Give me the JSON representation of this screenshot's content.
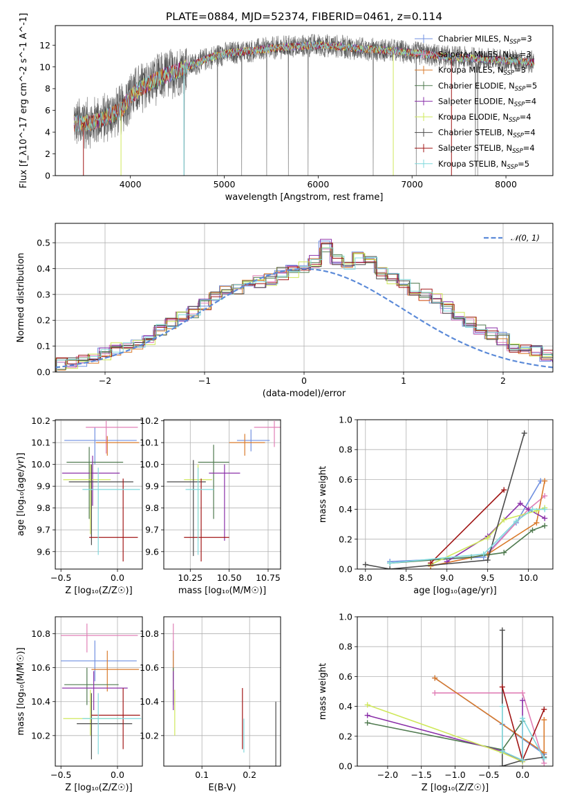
{
  "figure": {
    "title": "PLATE=0884, MJD=52374, FIBERID=0461, z=0.114"
  },
  "colors": {
    "Chabrier MILES": "#6f8fe0",
    "Salpeter MILES": "#e07fb6",
    "Kroupa MILES": "#d97a2b",
    "Chabrier ELODIE": "#4f7a4f",
    "Salpeter ELODIE": "#8a2fa8",
    "Kroupa ELODIE": "#cfe85a",
    "Chabrier STELIB": "#4a4a4a",
    "Salpeter STELIB": "#a01515",
    "Kroupa STELIB": "#7fd8dc",
    "Spectrum": "#7a7a7a",
    "Gaussian": "#5b8ad8"
  },
  "models": [
    "Chabrier MILES",
    "Salpeter MILES",
    "Kroupa MILES",
    "Chabrier ELODIE",
    "Salpeter ELODIE",
    "Kroupa ELODIE",
    "Chabrier STELIB",
    "Salpeter STELIB",
    "Kroupa STELIB"
  ],
  "chart_data": [
    {
      "id": "spectrum",
      "type": "line",
      "xlabel": "wavelength [Angstrom, rest frame]",
      "ylabel": "Flux [f_λ10^-17 erg cm^-2 s^-1 A^-1]",
      "xlim": [
        3200,
        8500
      ],
      "ylim": [
        0,
        13.8
      ],
      "xticks": [
        4000,
        5000,
        6000,
        7000,
        8000
      ],
      "yticks": [
        0,
        2,
        4,
        6,
        8,
        10,
        12
      ],
      "grid": false,
      "legend": "right",
      "legend_entries": [
        {
          "model": "Chabrier MILES",
          "nssp": "3"
        },
        {
          "model": "Salpeter MILES",
          "nssp": "3"
        },
        {
          "model": "Kroupa MILES",
          "nssp": "3"
        },
        {
          "model": "Chabrier ELODIE",
          "nssp": "5"
        },
        {
          "model": "Salpeter ELODIE",
          "nssp": "4"
        },
        {
          "model": "Kroupa ELODIE",
          "nssp": "4"
        },
        {
          "model": "Chabrier STELIB",
          "nssp": "4"
        },
        {
          "model": "Salpeter STELIB",
          "nssp": "4"
        },
        {
          "model": "Kroupa STELIB",
          "nssp": "5"
        }
      ],
      "continuum_x": [
        3400,
        3500,
        3600,
        3700,
        3800,
        3900,
        4000,
        4100,
        4200,
        4300,
        4400,
        4500,
        4600,
        4700,
        4800,
        4900,
        5000,
        5200,
        5400,
        5600,
        5800,
        6000,
        6200,
        6400,
        6600,
        6800,
        7000,
        7200,
        7400,
        7600,
        7800,
        8000,
        8200,
        8300
      ],
      "continuum_y": [
        4.8,
        4.8,
        4.9,
        5.2,
        5.6,
        6.0,
        7.3,
        8.0,
        8.5,
        8.9,
        9.3,
        9.6,
        10.0,
        10.3,
        10.7,
        11.0,
        11.2,
        11.4,
        11.6,
        11.8,
        11.9,
        12.0,
        11.9,
        11.7,
        11.6,
        11.5,
        11.3,
        11.1,
        10.9,
        10.8,
        10.7,
        10.6,
        10.5,
        10.4
      ]
    },
    {
      "id": "residuals",
      "type": "histogram",
      "xlabel": "(data-model)/error",
      "ylabel": "Normed distribution",
      "xlim": [
        -2.5,
        2.5
      ],
      "ylim": [
        0,
        0.575
      ],
      "xticks": [
        -2,
        -1,
        0,
        1,
        2
      ],
      "yticks": [
        0.0,
        0.1,
        0.2,
        0.3,
        0.4,
        0.5
      ],
      "grid": true,
      "legend": "top-right",
      "gaussian_label": "𝒩(0, 1)",
      "bin_width": 0.111,
      "bin_start": -2.5,
      "base_values": [
        0.03,
        0.03,
        0.04,
        0.05,
        0.07,
        0.09,
        0.1,
        0.11,
        0.13,
        0.16,
        0.19,
        0.21,
        0.23,
        0.26,
        0.29,
        0.31,
        0.32,
        0.34,
        0.35,
        0.36,
        0.38,
        0.39,
        0.41,
        0.43,
        0.49,
        0.44,
        0.42,
        0.44,
        0.43,
        0.38,
        0.36,
        0.34,
        0.32,
        0.3,
        0.28,
        0.25,
        0.21,
        0.19,
        0.17,
        0.15,
        0.13,
        0.1,
        0.09,
        0.08,
        0.06,
        0.05
      ]
    },
    {
      "id": "age-vs-Z",
      "type": "errorbar",
      "xlabel": "Z [log₁₀(Z/Z☉)]",
      "ylabel": "age  [log₁₀(age/yr)]",
      "xlim": [
        -0.55,
        0.22
      ],
      "ylim": [
        9.52,
        10.205
      ],
      "xticks": [
        -0.5,
        0.0
      ],
      "yticks": [
        9.6,
        9.7,
        9.8,
        9.9,
        10.0,
        10.1,
        10.2
      ],
      "grid": true,
      "points": [
        {
          "model": "Chabrier MILES",
          "x": -0.2,
          "xerr": [
            0.27,
            0.37
          ],
          "y": 10.11,
          "yerr": [
            0.11,
            0.06
          ]
        },
        {
          "model": "Salpeter MILES",
          "x": -0.1,
          "xerr": [
            0.18,
            0.28
          ],
          "y": 10.17,
          "yerr": [
            0.12,
            0.03
          ]
        },
        {
          "model": "Kroupa MILES",
          "x": -0.09,
          "xerr": [
            0.1,
            0.28
          ],
          "y": 10.1,
          "yerr": [
            0.06,
            0.03
          ]
        },
        {
          "model": "Chabrier ELODIE",
          "x": -0.25,
          "xerr": [
            0.2,
            0.3
          ],
          "y": 10.01,
          "yerr": [
            0.26,
            0.07
          ]
        },
        {
          "model": "Salpeter ELODIE",
          "x": -0.22,
          "xerr": [
            0.27,
            0.24
          ],
          "y": 9.96,
          "yerr": [
            0.15,
            0.08
          ]
        },
        {
          "model": "Kroupa ELODIE",
          "x": -0.24,
          "xerr": [
            0.24,
            0.18
          ],
          "y": 9.93,
          "yerr": [
            0.25,
            0.07
          ]
        },
        {
          "model": "Chabrier STELIB",
          "x": -0.23,
          "xerr": [
            0.2,
            0.37
          ],
          "y": 9.92,
          "yerr": [
            0.29,
            0.08
          ]
        },
        {
          "model": "Salpeter STELIB",
          "x": 0.05,
          "xerr": [
            0.3,
            0.13
          ],
          "y": 9.665,
          "yerr": [
            0.11,
            0.27
          ]
        },
        {
          "model": "Kroupa STELIB",
          "x": -0.17,
          "xerr": [
            0.14,
            0.37
          ],
          "y": 9.885,
          "yerr": [
            0.3,
            0.1
          ]
        }
      ]
    },
    {
      "id": "age-vs-mass",
      "type": "errorbar",
      "xlabel": "mass [log₁₀(M/M☉)]",
      "ylabel": "",
      "xlim": [
        10.08,
        10.83
      ],
      "ylim": [
        9.52,
        10.205
      ],
      "xticks": [
        10.25,
        10.5,
        10.75
      ],
      "yticks": [
        9.6,
        9.7,
        9.8,
        9.9,
        10.0,
        10.1,
        10.2
      ],
      "grid": true,
      "points": [
        {
          "model": "Chabrier MILES",
          "x": 10.64,
          "xerr": [
            0.09,
            0.12
          ],
          "y": 10.11,
          "yerr": [
            0.05,
            0.05
          ]
        },
        {
          "model": "Salpeter MILES",
          "x": 10.79,
          "xerr": [
            0.13,
            0.06
          ],
          "y": 10.17,
          "yerr": [
            0.09,
            0.03
          ]
        },
        {
          "model": "Kroupa MILES",
          "x": 10.6,
          "xerr": [
            0.1,
            0.13
          ],
          "y": 10.1,
          "yerr": [
            0.06,
            0.04
          ]
        },
        {
          "model": "Chabrier ELODIE",
          "x": 10.4,
          "xerr": [
            0.1,
            0.1
          ],
          "y": 10.01,
          "yerr": [
            0.26,
            0.08
          ]
        },
        {
          "model": "Salpeter ELODIE",
          "x": 10.47,
          "xerr": [
            0.1,
            0.1
          ],
          "y": 9.96,
          "yerr": [
            0.31,
            0.04
          ]
        },
        {
          "model": "Kroupa ELODIE",
          "x": 10.3,
          "xerr": [
            0.09,
            0.09
          ],
          "y": 9.93,
          "yerr": [
            0.28,
            0.07
          ]
        },
        {
          "model": "Chabrier STELIB",
          "x": 10.27,
          "xerr": [
            0.17,
            0.08
          ],
          "y": 9.92,
          "yerr": [
            0.34,
            0.1
          ]
        },
        {
          "model": "Salpeter STELIB",
          "x": 10.32,
          "xerr": [
            0.11,
            0.18
          ],
          "y": 9.665,
          "yerr": [
            0.11,
            0.27
          ]
        },
        {
          "model": "Kroupa STELIB",
          "x": 10.3,
          "xerr": [
            0.08,
            0.1
          ],
          "y": 9.885,
          "yerr": [
            0.3,
            0.1
          ]
        }
      ]
    },
    {
      "id": "mass-weight-vs-age",
      "type": "line",
      "xlabel": "age  [log₁₀(age/yr)]",
      "ylabel": "mass weight",
      "xlim": [
        7.9,
        10.3
      ],
      "ylim": [
        0,
        1.0
      ],
      "xticks": [
        8.0,
        8.5,
        9.0,
        9.5,
        10.0
      ],
      "yticks": [
        0.0,
        0.2,
        0.4,
        0.6,
        0.8,
        1.0
      ],
      "grid": true,
      "series": [
        {
          "model": "Chabrier MILES",
          "x": [
            8.3,
            9.45,
            9.85,
            10.15
          ],
          "y": [
            0.05,
            0.08,
            0.31,
            0.59
          ]
        },
        {
          "model": "Salpeter MILES",
          "x": [
            8.8,
            9.5,
            10.0,
            10.2
          ],
          "y": [
            0.02,
            0.1,
            0.4,
            0.49
          ]
        },
        {
          "model": "Kroupa MILES",
          "x": [
            8.8,
            9.5,
            10.1,
            10.2
          ],
          "y": [
            0.02,
            0.1,
            0.31,
            0.59
          ]
        },
        {
          "model": "Chabrier ELODIE",
          "x": [
            8.3,
            9.3,
            9.7,
            10.05,
            10.2
          ],
          "y": [
            0.04,
            0.08,
            0.11,
            0.26,
            0.29
          ]
        },
        {
          "model": "Salpeter ELODIE",
          "x": [
            9.0,
            9.5,
            9.9,
            10.0,
            10.2
          ],
          "y": [
            0.05,
            0.22,
            0.44,
            0.4,
            0.34
          ]
        },
        {
          "model": "Kroupa ELODIE",
          "x": [
            8.8,
            9.5,
            9.7,
            10.1,
            10.2
          ],
          "y": [
            0.03,
            0.21,
            0.33,
            0.39,
            0.41
          ]
        },
        {
          "model": "Chabrier STELIB",
          "x": [
            8.0,
            8.3,
            9.5,
            9.95
          ],
          "y": [
            0.03,
            0.0,
            0.06,
            0.91
          ]
        },
        {
          "model": "Salpeter STELIB",
          "x": [
            8.8,
            9.7
          ],
          "y": [
            0.04,
            0.53
          ]
        },
        {
          "model": "Kroupa STELIB",
          "x": [
            8.3,
            9.45,
            9.85,
            10.05,
            10.2
          ],
          "y": [
            0.04,
            0.1,
            0.32,
            0.4,
            0.4
          ]
        }
      ]
    },
    {
      "id": "mass-vs-Z",
      "type": "errorbar",
      "xlabel": "Z [log₁₀(Z/Z☉)]",
      "ylabel": "mass [log₁₀(M/M☉)]",
      "xlim": [
        -0.55,
        0.22
      ],
      "ylim": [
        10.02,
        10.9
      ],
      "xticks": [
        -0.5,
        0.0
      ],
      "yticks": [
        10.2,
        10.4,
        10.6,
        10.8
      ],
      "grid": true,
      "points": [
        {
          "model": "Chabrier MILES",
          "x": -0.2,
          "xerr": [
            0.3,
            0.37
          ],
          "y": 10.64,
          "yerr": [
            0.12,
            0.12
          ]
        },
        {
          "model": "Salpeter MILES",
          "x": -0.27,
          "xerr": [
            0.23,
            0.45
          ],
          "y": 10.79,
          "yerr": [
            0.1,
            0.07
          ]
        },
        {
          "model": "Kroupa MILES",
          "x": -0.09,
          "xerr": [
            0.14,
            0.28
          ],
          "y": 10.59,
          "yerr": [
            0.13,
            0.11
          ]
        },
        {
          "model": "Chabrier ELODIE",
          "x": -0.27,
          "xerr": [
            0.2,
            0.28
          ],
          "y": 10.5,
          "yerr": [
            0.12,
            0.1
          ]
        },
        {
          "model": "Salpeter ELODIE",
          "x": -0.21,
          "xerr": [
            0.28,
            0.3
          ],
          "y": 10.48,
          "yerr": [
            0.13,
            0.1
          ]
        },
        {
          "model": "Kroupa ELODIE",
          "x": -0.24,
          "xerr": [
            0.24,
            0.27
          ],
          "y": 10.3,
          "yerr": [
            0.1,
            0.17
          ]
        },
        {
          "model": "Chabrier STELIB",
          "x": -0.23,
          "xerr": [
            0.13,
            0.36
          ],
          "y": 10.27,
          "yerr": [
            0.21,
            0.18
          ]
        },
        {
          "model": "Salpeter STELIB",
          "x": 0.05,
          "xerr": [
            0.28,
            0.15
          ],
          "y": 10.32,
          "yerr": [
            0.2,
            0.16
          ]
        },
        {
          "model": "Kroupa STELIB",
          "x": -0.17,
          "xerr": [
            0.14,
            0.38
          ],
          "y": 10.3,
          "yerr": [
            0.21,
            0.15
          ]
        }
      ]
    },
    {
      "id": "mass-vs-ebv",
      "type": "errorbar",
      "xlabel": "E(B-V)",
      "ylabel": "",
      "xlim": [
        0.02,
        0.265
      ],
      "ylim": [
        10.02,
        10.9
      ],
      "xticks": [
        0.1,
        0.2
      ],
      "yticks": [
        10.2,
        10.4,
        10.6,
        10.8
      ],
      "grid": true,
      "points": [
        {
          "model": "Chabrier MILES",
          "x": 0.04,
          "xerr": [
            0,
            0
          ],
          "y": 10.64,
          "yerr": [
            0.12,
            0.12
          ]
        },
        {
          "model": "Salpeter MILES",
          "x": 0.04,
          "xerr": [
            0,
            0
          ],
          "y": 10.79,
          "yerr": [
            0.1,
            0.07
          ]
        },
        {
          "model": "Kroupa MILES",
          "x": 0.04,
          "xerr": [
            0,
            0
          ],
          "y": 10.59,
          "yerr": [
            0.13,
            0.11
          ]
        },
        {
          "model": "Chabrier ELODIE",
          "x": 0.04,
          "xerr": [
            0,
            0
          ],
          "y": 10.5,
          "yerr": [
            0.12,
            0.1
          ]
        },
        {
          "model": "Salpeter ELODIE",
          "x": 0.04,
          "xerr": [
            0,
            0
          ],
          "y": 10.48,
          "yerr": [
            0.13,
            0.1
          ]
        },
        {
          "model": "Kroupa ELODIE",
          "x": 0.043,
          "xerr": [
            0,
            0
          ],
          "y": 10.3,
          "yerr": [
            0.1,
            0.17
          ]
        },
        {
          "model": "Chabrier STELIB",
          "x": 0.255,
          "xerr": [
            0,
            0
          ],
          "y": 10.2,
          "yerr": [
            0.18,
            0.2
          ]
        },
        {
          "model": "Salpeter STELIB",
          "x": 0.185,
          "xerr": [
            0,
            0
          ],
          "y": 10.3,
          "yerr": [
            0.18,
            0.18
          ]
        },
        {
          "model": "Kroupa STELIB",
          "x": 0.188,
          "xerr": [
            0,
            0
          ],
          "y": 10.2,
          "yerr": [
            0.1,
            0.1
          ]
        }
      ]
    },
    {
      "id": "mass-weight-vs-Z",
      "type": "line",
      "xlabel": "Z [log₁₀(Z/Z☉)]",
      "ylabel": "mass weight",
      "xlim": [
        -2.45,
        0.45
      ],
      "ylim": [
        0,
        1.0
      ],
      "xticks": [
        -2.0,
        -1.5,
        -1.0,
        -0.5,
        0.0
      ],
      "yticks": [
        0.0,
        0.2,
        0.4,
        0.6,
        0.8,
        1.0
      ],
      "grid": true,
      "series": [
        {
          "model": "Chabrier MILES",
          "x": [
            -1.3,
            -0.3,
            0.32
          ],
          "y": [
            0.59,
            0.28,
            0.08
          ]
        },
        {
          "model": "Salpeter MILES",
          "x": [
            -1.3,
            0.0,
            0.32
          ],
          "y": [
            0.49,
            0.49,
            0.02
          ]
        },
        {
          "model": "Kroupa MILES",
          "x": [
            -1.3,
            0.32,
            0.32
          ],
          "y": [
            0.59,
            0.09,
            0.31
          ]
        },
        {
          "model": "Chabrier ELODIE",
          "x": [
            -2.3,
            -0.3,
            0.0
          ],
          "y": [
            0.29,
            0.11,
            0.3
          ]
        },
        {
          "model": "Salpeter ELODIE",
          "x": [
            -2.3,
            -0.3,
            0.0,
            0.0
          ],
          "y": [
            0.34,
            0.1,
            0.03,
            0.44
          ]
        },
        {
          "model": "Kroupa ELODIE",
          "x": [
            -2.3,
            -0.3,
            0.0
          ],
          "y": [
            0.41,
            0.09,
            0.03
          ]
        },
        {
          "model": "Chabrier STELIB",
          "x": [
            -0.3,
            -0.3,
            0.0,
            0.32
          ],
          "y": [
            0.91,
            0.0,
            0.04,
            0.06
          ]
        },
        {
          "model": "Salpeter STELIB",
          "x": [
            -0.3,
            0.0,
            0.32
          ],
          "y": [
            0.53,
            0.04,
            0.38
          ]
        },
        {
          "model": "Kroupa STELIB",
          "x": [
            -0.3,
            -0.3,
            0.0,
            0.0,
            0.32
          ],
          "y": [
            0.4,
            0.1,
            0.04,
            0.32,
            0.05
          ]
        }
      ]
    }
  ]
}
